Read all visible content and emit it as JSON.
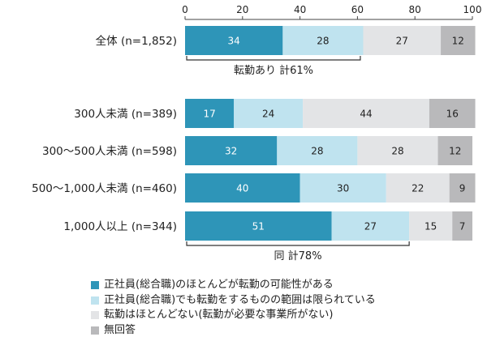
{
  "chart_data": {
    "type": "bar",
    "orientation": "horizontal",
    "stacked": true,
    "title": "",
    "xlabel": "",
    "ylabel": "",
    "xlim": [
      0,
      100
    ],
    "ticks": [
      "0",
      "20",
      "40",
      "60",
      "80",
      "100"
    ],
    "tick_values": [
      0,
      20,
      40,
      60,
      80,
      100
    ],
    "categories": [
      "全体 (n=1,852)",
      "300人未満 (n=389)",
      "300～500人未満 (n=598)",
      "500～1,000人未満 (n=460)",
      "1,000人以上 (n=344)"
    ],
    "series": [
      {
        "name": "正社員(総合職)のほとんどが転勤の可能性がある",
        "color": "#2e95b8",
        "label_color": "#ffffff",
        "values": [
          34,
          17,
          32,
          40,
          51
        ]
      },
      {
        "name": "正社員(総合職)でも転勤をするものの範囲は限られている",
        "color": "#bfe3ef",
        "label_color": "#222222",
        "values": [
          28,
          24,
          28,
          30,
          27
        ]
      },
      {
        "name": "転勤はほとんどない(転勤が必要な事業所がない)",
        "color": "#e3e4e6",
        "label_color": "#222222",
        "values": [
          27,
          44,
          28,
          22,
          15
        ]
      },
      {
        "name": "無回答",
        "color": "#b9b9bb",
        "label_color": "#222222",
        "values": [
          12,
          16,
          12,
          9,
          7
        ]
      }
    ],
    "annotations": [
      {
        "text": "転勤あり 計61%",
        "category_index": 0,
        "value": 61
      },
      {
        "text": "同 計78%",
        "category_index": 4,
        "value": 78
      }
    ],
    "grid": false,
    "legend_position": "bottom-left"
  }
}
